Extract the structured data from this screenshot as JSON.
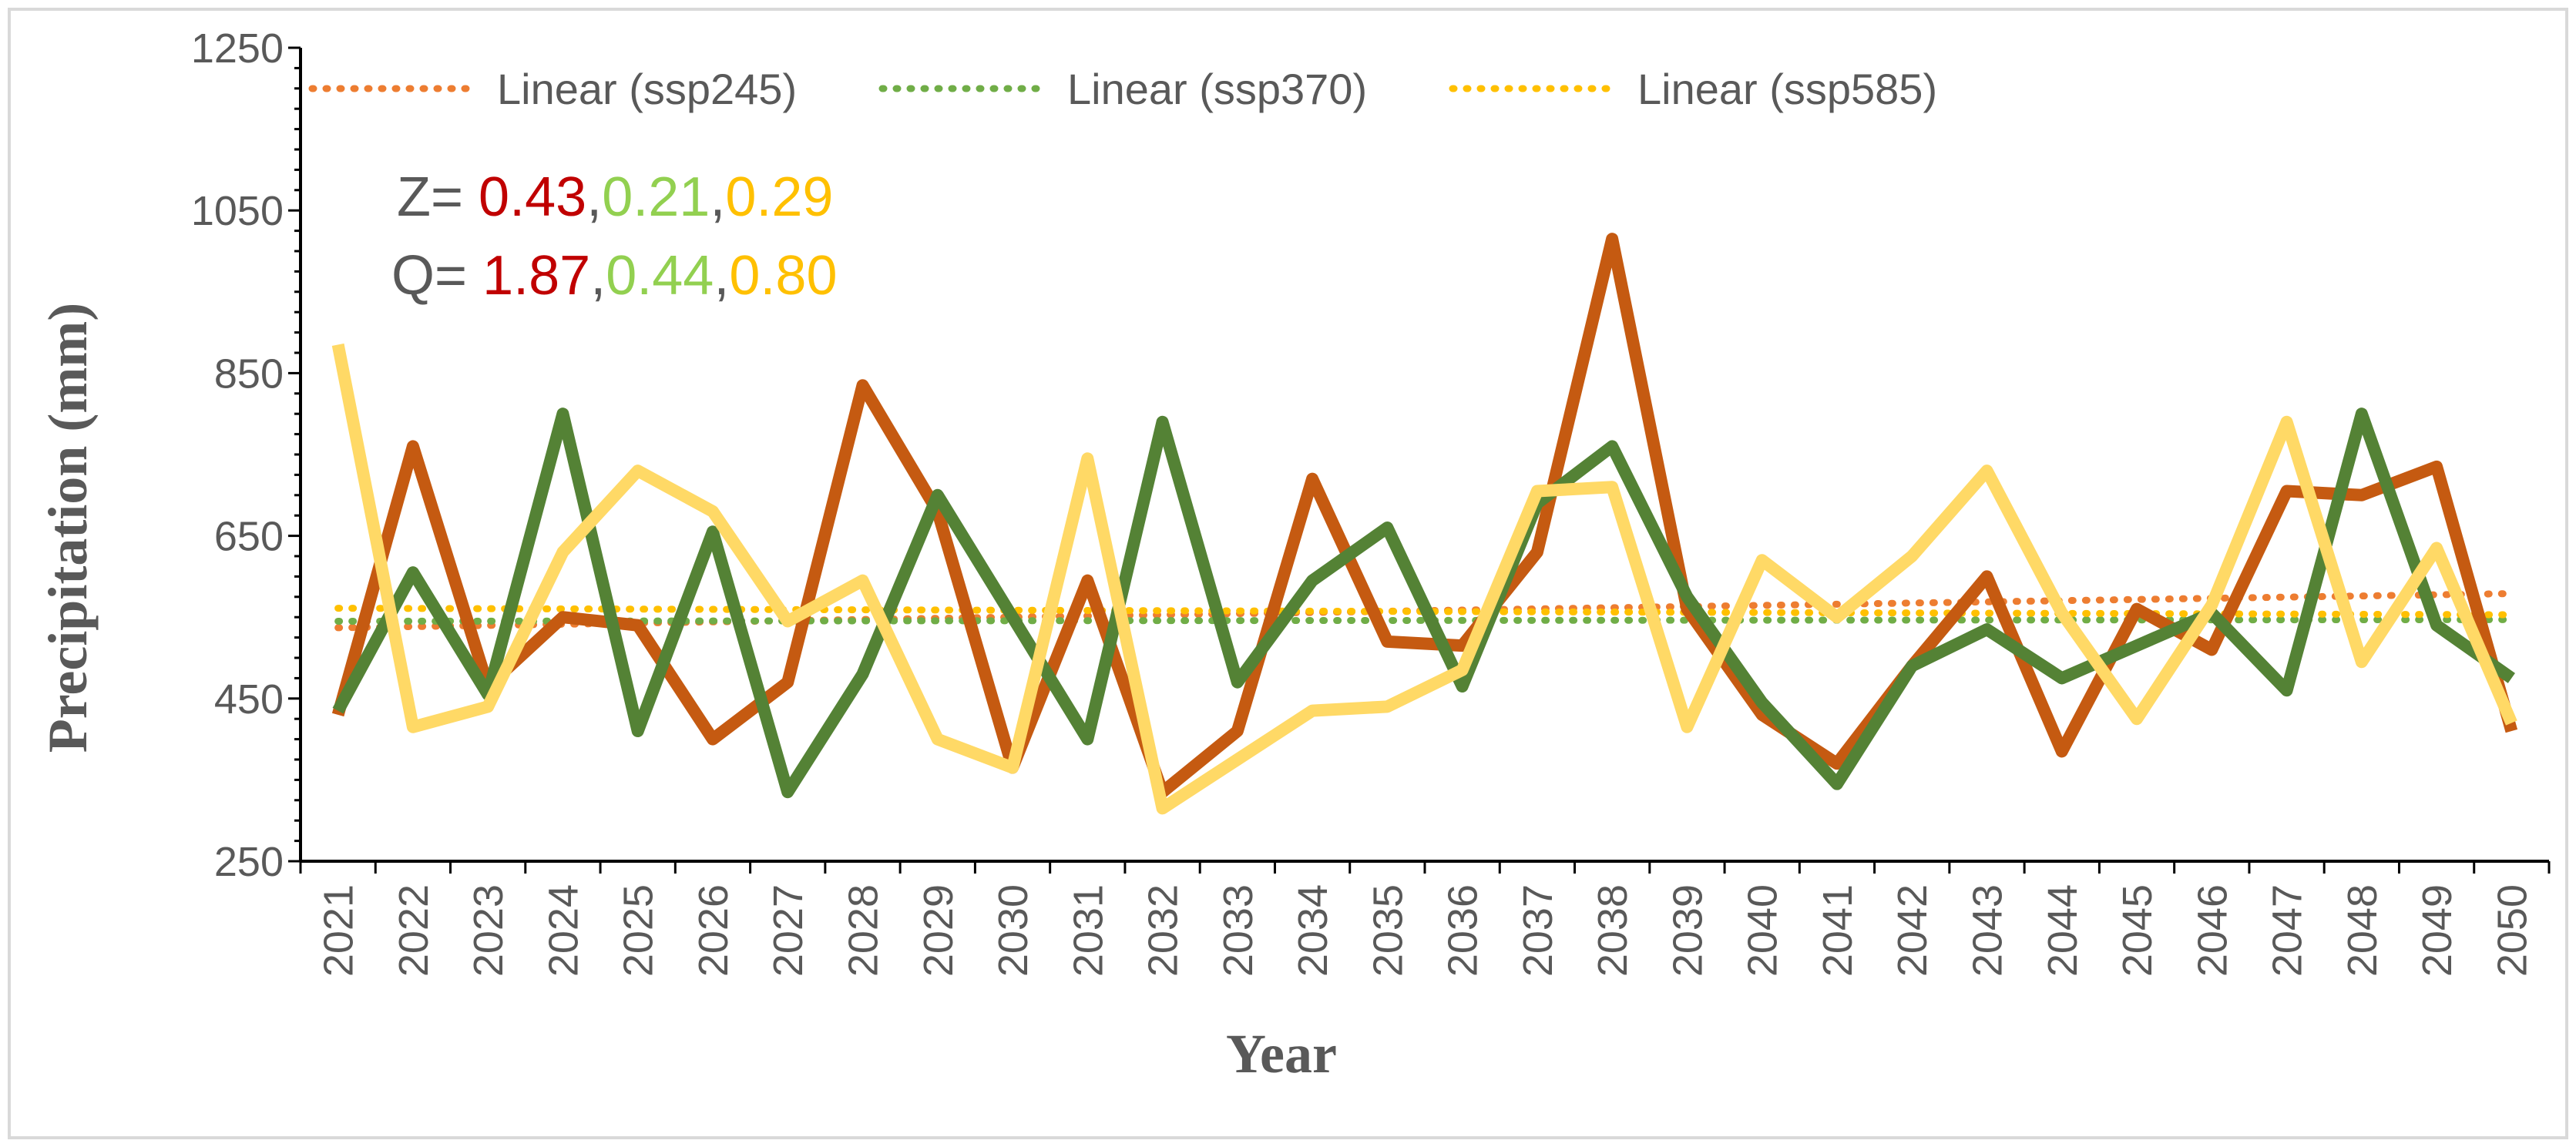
{
  "chart_data": {
    "type": "line",
    "title": "",
    "xlabel": "Year",
    "ylabel": "Precipitation (mm)",
    "ylim": [
      250,
      1250
    ],
    "yticks": [
      250,
      450,
      650,
      850,
      1050,
      1250
    ],
    "categories": [
      "2021",
      "2022",
      "2023",
      "2024",
      "2025",
      "2026",
      "2027",
      "2028",
      "2029",
      "2030",
      "2031",
      "2032",
      "2033",
      "2034",
      "2035",
      "2036",
      "2037",
      "2038",
      "2039",
      "2040",
      "2041",
      "2042",
      "2043",
      "2044",
      "2045",
      "2046",
      "2047",
      "2048",
      "2049",
      "2050"
    ],
    "series": [
      {
        "name": "ssp245",
        "color": "#c55a11",
        "values": [
          430,
          760,
          465,
          550,
          540,
          400,
          470,
          835,
          680,
          365,
          595,
          335,
          410,
          720,
          520,
          515,
          630,
          1015,
          560,
          430,
          370,
          490,
          600,
          385,
          560,
          510,
          705,
          700,
          735,
          410
        ]
      },
      {
        "name": "ssp370",
        "color": "#548235",
        "values": [
          435,
          605,
          455,
          800,
          410,
          655,
          335,
          480,
          700,
          550,
          400,
          790,
          470,
          595,
          660,
          465,
          690,
          760,
          575,
          445,
          345,
          490,
          535,
          475,
          515,
          555,
          460,
          800,
          540,
          475
        ]
      },
      {
        "name": "ssp585",
        "color": "#ffd966",
        "values": [
          885,
          415,
          440,
          630,
          730,
          680,
          545,
          595,
          400,
          365,
          745,
          315,
          375,
          435,
          440,
          485,
          705,
          710,
          415,
          620,
          550,
          625,
          730,
          555,
          425,
          565,
          790,
          495,
          635,
          420
        ]
      }
    ],
    "trendlines": [
      {
        "name": "Linear (ssp245)",
        "color": "#ed7d31",
        "start": 537,
        "end": 579
      },
      {
        "name": "Linear (ssp370)",
        "color": "#70ad47",
        "start": 545,
        "end": 547
      },
      {
        "name": "Linear (ssp585)",
        "color": "#ffc000",
        "start": 561,
        "end": 553
      }
    ],
    "legend_position": "top",
    "annotations": {
      "z_prefix": "Z= ",
      "q_prefix": "Q= ",
      "separator": ",",
      "z_values": [
        "0.43",
        "0.21",
        "0.29"
      ],
      "q_values": [
        "1.87",
        "0.44",
        "0.80"
      ],
      "value_colors": [
        "#c00000",
        "#92d050",
        "#ffc000"
      ]
    }
  }
}
